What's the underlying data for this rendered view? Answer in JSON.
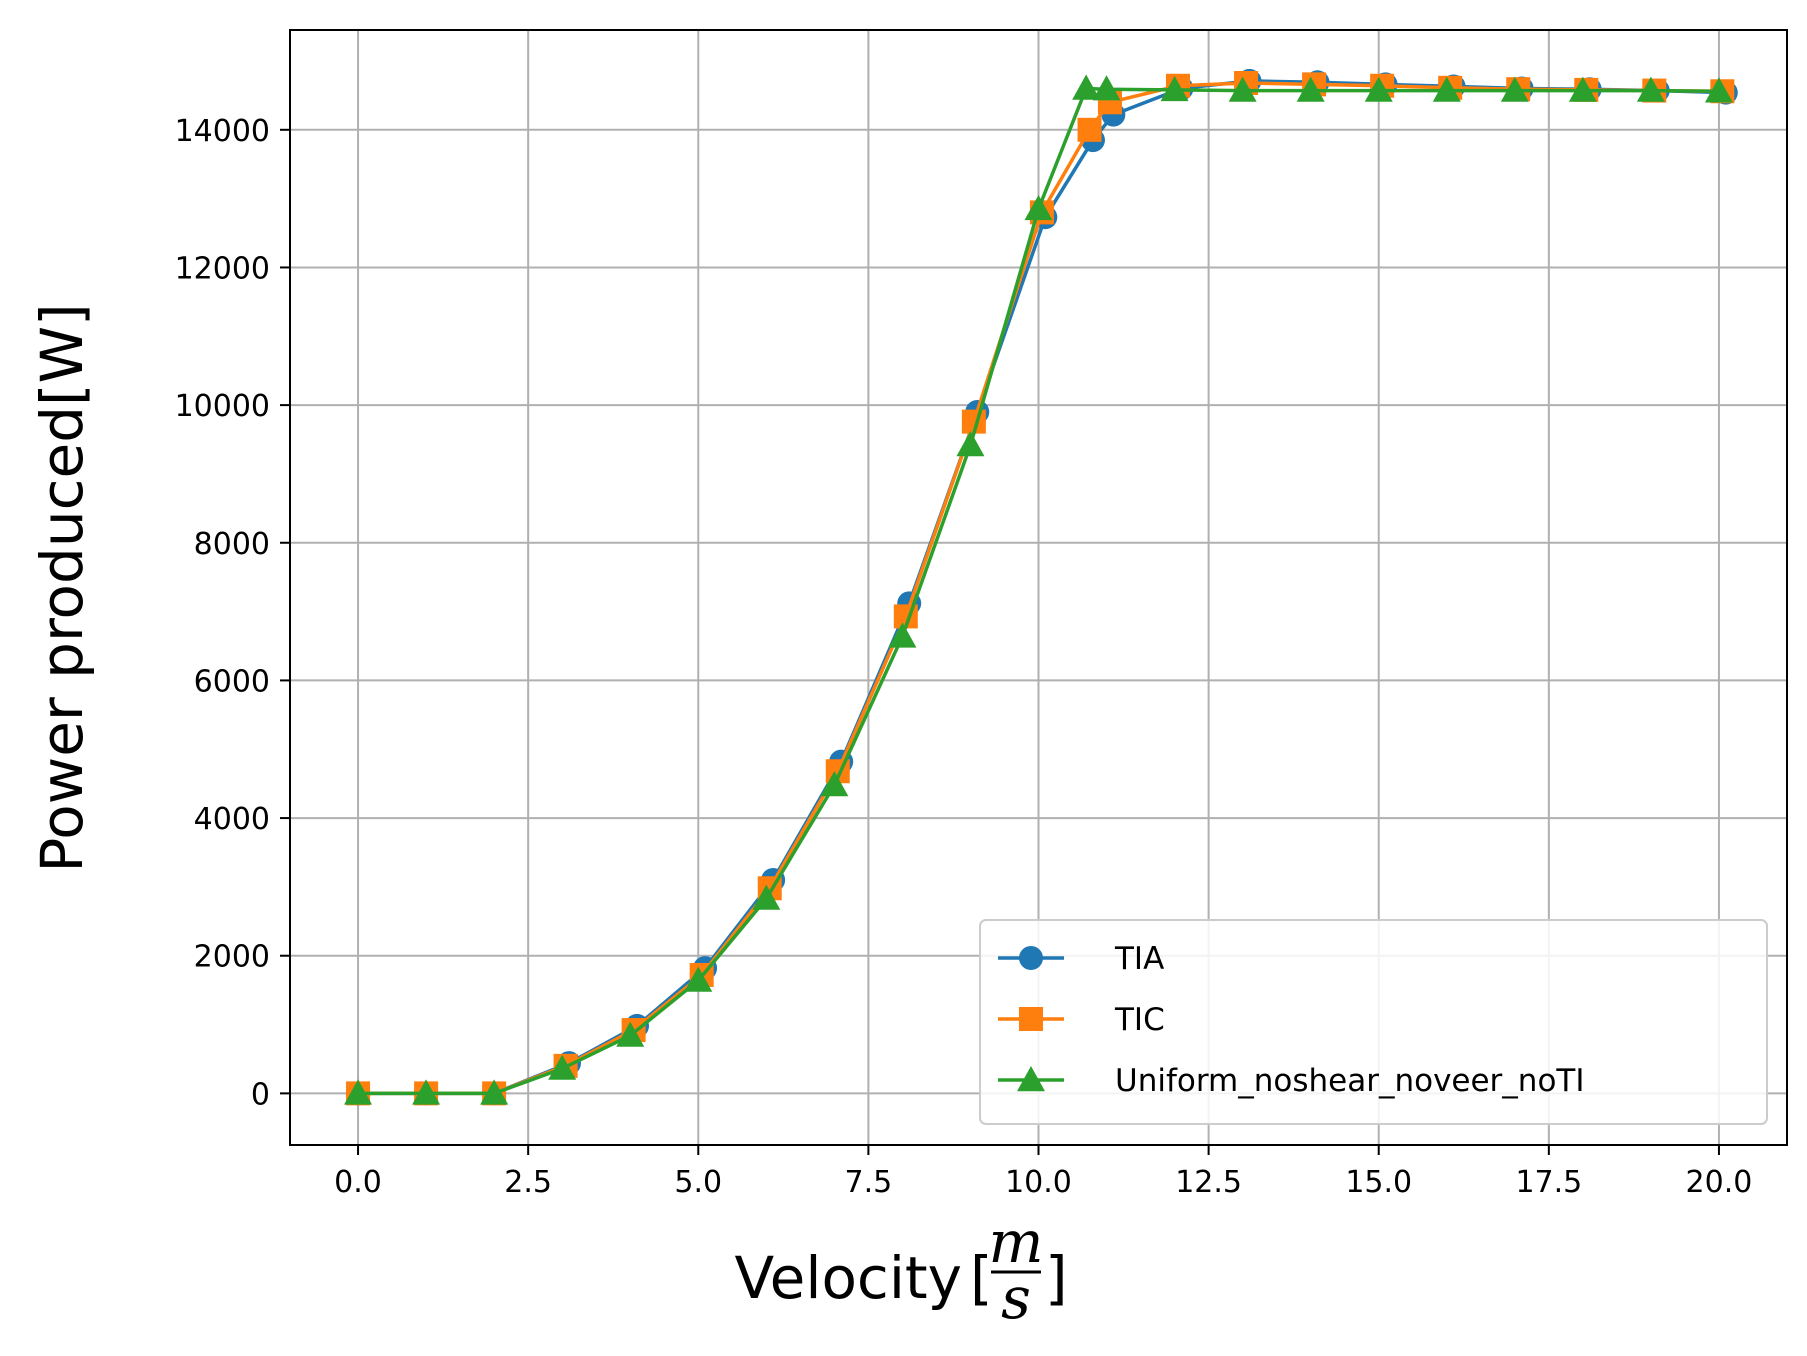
{
  "chart_data": {
    "type": "line",
    "title": "",
    "xlabel": "Velocity",
    "xlabel_unit_numerator": "m",
    "xlabel_unit_denominator": "s",
    "ylabel": "Power produced[W]",
    "xlim": [
      -1.0,
      21.0
    ],
    "ylim": [
      -750,
      15450
    ],
    "xticks": [
      0,
      2.5,
      5,
      7.5,
      10,
      12.5,
      15,
      17.5,
      20
    ],
    "xtick_labels": [
      "0.0",
      "2.5",
      "5.0",
      "7.5",
      "10.0",
      "12.5",
      "15.0",
      "17.5",
      "20.0"
    ],
    "yticks": [
      0,
      2000,
      4000,
      6000,
      8000,
      10000,
      12000,
      14000
    ],
    "ytick_labels": [
      "0",
      "2000",
      "4000",
      "6000",
      "8000",
      "10000",
      "12000",
      "14000"
    ],
    "grid": true,
    "legend_position": "lower-right",
    "series": [
      {
        "name": "TIA",
        "color": "#1f77b4",
        "marker": "circle",
        "x": [
          0,
          1,
          2,
          3.1,
          4.1,
          5.1,
          6.1,
          7.1,
          8.1,
          9.1,
          10.1,
          10.8,
          11.1,
          12.1,
          13.1,
          14.1,
          15.1,
          16.1,
          17.1,
          18.1,
          19.1,
          20.1
        ],
        "y": [
          0,
          0,
          0,
          440,
          980,
          1820,
          3100,
          4820,
          7120,
          9900,
          12730,
          13850,
          14220,
          14600,
          14710,
          14690,
          14660,
          14630,
          14600,
          14590,
          14570,
          14540
        ]
      },
      {
        "name": "TIC",
        "color": "#ff7f0e",
        "marker": "square",
        "x": [
          0,
          1,
          2,
          3.05,
          4.05,
          5.05,
          6.05,
          7.05,
          8.05,
          9.05,
          10.05,
          10.75,
          11.05,
          12.05,
          13.05,
          14.05,
          15.05,
          16.05,
          17.05,
          18.05,
          19.05,
          20.05
        ],
        "y": [
          0,
          0,
          0,
          400,
          920,
          1720,
          2980,
          4680,
          6930,
          9760,
          12800,
          14000,
          14400,
          14640,
          14680,
          14660,
          14640,
          14610,
          14590,
          14580,
          14570,
          14560
        ]
      },
      {
        "name": "Uniform_noshear_noveer_noTI",
        "color": "#2ca02c",
        "marker": "triangle",
        "x": [
          0,
          1,
          2,
          3,
          4,
          5,
          6,
          7,
          8,
          9,
          10,
          10.7,
          11,
          12,
          13,
          14,
          15,
          16,
          17,
          18,
          19,
          20
        ],
        "y": [
          0,
          0,
          0,
          360,
          840,
          1640,
          2830,
          4480,
          6640,
          9420,
          12850,
          14600,
          14590,
          14580,
          14570,
          14570,
          14570,
          14570,
          14570,
          14570,
          14570,
          14560
        ]
      }
    ]
  }
}
